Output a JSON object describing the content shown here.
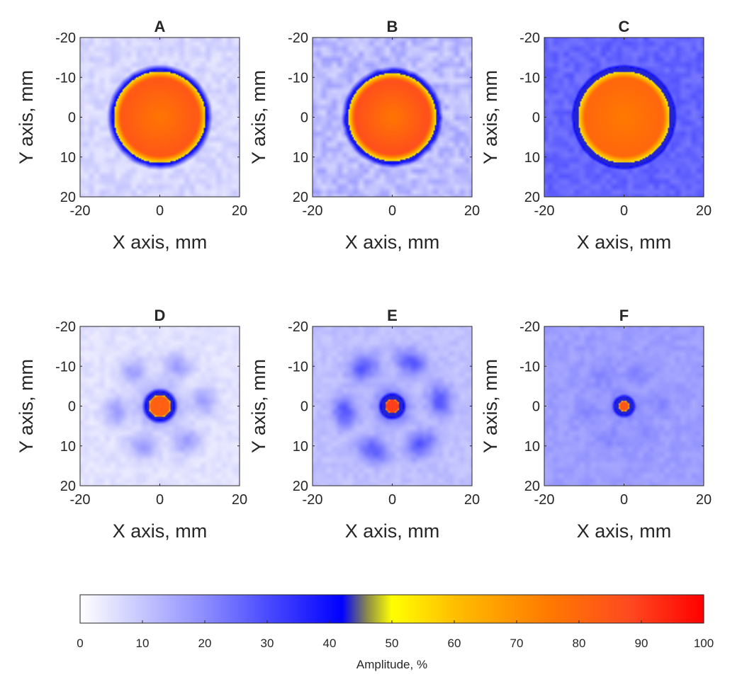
{
  "chart_data": [
    {
      "type": "heatmap",
      "title": "A",
      "xlabel": "X axis, mm",
      "ylabel": "Y axis, mm",
      "xlim": [
        -20,
        20
      ],
      "ylim": [
        -20,
        20
      ],
      "y_reversed": true,
      "xticks": [
        "-20",
        "0",
        "20"
      ],
      "yticks": [
        "-20",
        "-10",
        "0",
        "10",
        "20"
      ],
      "spot": {
        "center_mm": [
          0,
          0
        ],
        "radius_mm": 11.5,
        "core_amplitude_pct": 76,
        "rim_amplitude_pct": 84
      },
      "background_amplitude_pct": 7,
      "noise_amplitude_pct": 3,
      "halo": null
    },
    {
      "type": "heatmap",
      "title": "B",
      "xlabel": "X axis, mm",
      "ylabel": "Y axis, mm",
      "xlim": [
        -20,
        20
      ],
      "ylim": [
        -20,
        20
      ],
      "y_reversed": true,
      "xticks": [
        "-20",
        "0",
        "20"
      ],
      "yticks": [
        "-20",
        "-10",
        "0",
        "10",
        "20"
      ],
      "spot": {
        "center_mm": [
          0,
          0
        ],
        "radius_mm": 11,
        "core_amplitude_pct": 76,
        "rim_amplitude_pct": 86
      },
      "background_amplitude_pct": 12,
      "noise_amplitude_pct": 5,
      "halo": null
    },
    {
      "type": "heatmap",
      "title": "C",
      "xlabel": "X axis, mm",
      "ylabel": "Y axis, mm",
      "xlim": [
        -20,
        20
      ],
      "ylim": [
        -20,
        20
      ],
      "y_reversed": true,
      "xticks": [
        "-20",
        "0",
        "20"
      ],
      "yticks": [
        "-20",
        "-10",
        "0",
        "10",
        "20"
      ],
      "spot": {
        "center_mm": [
          0,
          0
        ],
        "radius_mm": 11.5,
        "core_amplitude_pct": 75,
        "rim_amplitude_pct": 80
      },
      "background_amplitude_pct": 26,
      "noise_amplitude_pct": 3,
      "halo": null
    },
    {
      "type": "heatmap",
      "title": "D",
      "xlabel": "X axis, mm",
      "ylabel": "Y axis, mm",
      "xlim": [
        -20,
        20
      ],
      "ylim": [
        -20,
        20
      ],
      "y_reversed": true,
      "xticks": [
        "-20",
        "0",
        "20"
      ],
      "yticks": [
        "-20",
        "-10",
        "0",
        "10",
        "20"
      ],
      "spot": {
        "center_mm": [
          0,
          0
        ],
        "radius_mm": 2.8,
        "core_amplitude_pct": 82,
        "rim_amplitude_pct": 82
      },
      "background_amplitude_pct": 5,
      "noise_amplitude_pct": 2,
      "halo": {
        "amplitude_pct": 20,
        "radius_mm": 5,
        "ring_amplitude_pct": 11,
        "ring_radius_mm": 11,
        "ring_width_mm": 3
      }
    },
    {
      "type": "heatmap",
      "title": "E",
      "xlabel": "X axis, mm",
      "ylabel": "Y axis, mm",
      "xlim": [
        -20,
        20
      ],
      "ylim": [
        -20,
        20
      ],
      "y_reversed": true,
      "xticks": [
        "-20",
        "0",
        "20"
      ],
      "yticks": [
        "-20",
        "-10",
        "0",
        "10",
        "20"
      ],
      "spot": {
        "center_mm": [
          0,
          0
        ],
        "radius_mm": 1.8,
        "core_amplitude_pct": 90,
        "rim_amplitude_pct": 90
      },
      "background_amplitude_pct": 11,
      "noise_amplitude_pct": 2,
      "halo": {
        "amplitude_pct": 22,
        "radius_mm": 4,
        "ring_amplitude_pct": 17,
        "ring_radius_mm": 12,
        "ring_width_mm": 3
      }
    },
    {
      "type": "heatmap",
      "title": "F",
      "xlabel": "X axis, mm",
      "ylabel": "Y axis, mm",
      "xlim": [
        -20,
        20
      ],
      "ylim": [
        -20,
        20
      ],
      "y_reversed": true,
      "xticks": [
        "-20",
        "0",
        "20"
      ],
      "yticks": [
        "-20",
        "-10",
        "0",
        "10",
        "20"
      ],
      "spot": {
        "center_mm": [
          0,
          0
        ],
        "radius_mm": 1.3,
        "core_amplitude_pct": 85,
        "rim_amplitude_pct": 85
      },
      "background_amplitude_pct": 17,
      "noise_amplitude_pct": 2,
      "halo": {
        "amplitude_pct": 10,
        "radius_mm": 3,
        "ring_amplitude_pct": 4,
        "ring_radius_mm": 9,
        "ring_width_mm": 3
      }
    }
  ],
  "colorbar": {
    "label": "Amplitude, %",
    "min": 0,
    "max": 100,
    "ticks": [
      "0",
      "10",
      "20",
      "30",
      "40",
      "50",
      "60",
      "70",
      "80",
      "90",
      "100"
    ],
    "colormap": [
      {
        "value": 0,
        "color": "#ffffff"
      },
      {
        "value": 20,
        "color": "#8c8cff"
      },
      {
        "value": 30,
        "color": "#4b4bff"
      },
      {
        "value": 42,
        "color": "#0000ff"
      },
      {
        "value": 46,
        "color": "#8a8a4a"
      },
      {
        "value": 50,
        "color": "#ffff00"
      },
      {
        "value": 60,
        "color": "#ffbf00"
      },
      {
        "value": 75,
        "color": "#ff7a00"
      },
      {
        "value": 88,
        "color": "#ff4a20"
      },
      {
        "value": 100,
        "color": "#ff0000"
      }
    ]
  }
}
